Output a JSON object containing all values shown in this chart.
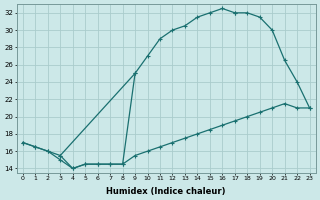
{
  "xlabel": "Humidex (Indice chaleur)",
  "background_color": "#cce8e8",
  "grid_color": "#aacccc",
  "line_color": "#1a7070",
  "xlim": [
    -0.5,
    23.5
  ],
  "ylim": [
    13.5,
    33
  ],
  "xticks": [
    0,
    1,
    2,
    3,
    4,
    5,
    6,
    7,
    8,
    9,
    10,
    11,
    12,
    13,
    14,
    15,
    16,
    17,
    18,
    19,
    20,
    21,
    22,
    23
  ],
  "yticks": [
    14,
    16,
    18,
    20,
    22,
    24,
    26,
    28,
    30,
    32
  ],
  "curve_upper_x": [
    0,
    1,
    2,
    3,
    9,
    10,
    11,
    12,
    13,
    14,
    15,
    16,
    17
  ],
  "curve_upper_y": [
    17,
    16.5,
    16,
    15.5,
    25,
    27,
    29,
    30,
    30.5,
    31.5,
    32,
    32.5,
    32
  ],
  "curve_lower_x": [
    0,
    1,
    2,
    3,
    4,
    5,
    6,
    7,
    8,
    9,
    10,
    11,
    12,
    13,
    14,
    15,
    16,
    17,
    18,
    19,
    20,
    21,
    22,
    23
  ],
  "curve_lower_y": [
    17,
    16.5,
    16,
    15,
    14,
    14.5,
    14.5,
    14.5,
    14.5,
    15.5,
    16,
    16.5,
    17,
    17.5,
    18,
    18.5,
    19,
    19.5,
    20,
    20.5,
    21,
    21.5,
    21,
    21
  ],
  "curve_right_x": [
    17,
    18,
    19,
    20,
    21,
    22,
    23
  ],
  "curve_right_y": [
    32,
    32,
    31.5,
    30,
    26.5,
    24,
    21
  ],
  "curve_mid_x": [
    3,
    4,
    5,
    6,
    7,
    8,
    9
  ],
  "curve_mid_y": [
    15.5,
    14,
    14.5,
    14.5,
    14.5,
    14.5,
    25
  ]
}
